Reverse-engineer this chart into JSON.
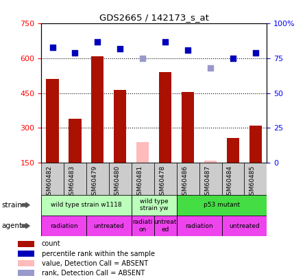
{
  "title": "GDS2665 / 142173_s_at",
  "samples": [
    "GSM60482",
    "GSM60483",
    "GSM60479",
    "GSM60480",
    "GSM60481",
    "GSM60478",
    "GSM60486",
    "GSM60487",
    "GSM60484",
    "GSM60485"
  ],
  "count_values": [
    510,
    340,
    610,
    465,
    null,
    540,
    455,
    null,
    255,
    310
  ],
  "count_absent": [
    null,
    null,
    null,
    null,
    240,
    null,
    null,
    158,
    null,
    null
  ],
  "rank_values": [
    83,
    79,
    87,
    82,
    null,
    87,
    81,
    null,
    75,
    79
  ],
  "rank_absent": [
    null,
    null,
    null,
    null,
    75,
    null,
    null,
    68,
    null,
    null
  ],
  "ylim_left": [
    150,
    750
  ],
  "ylim_right": [
    0,
    100
  ],
  "yticks_left": [
    150,
    300,
    450,
    600,
    750
  ],
  "yticks_right": [
    0,
    25,
    50,
    75,
    100
  ],
  "bar_color": "#aa1100",
  "bar_absent_color": "#ffbbbb",
  "dot_color": "#0000bb",
  "dot_absent_color": "#9999cc",
  "grid_color": "#000000",
  "strain_groups": [
    {
      "label": "wild type strain w1118",
      "start": 0,
      "end": 4,
      "color": "#bbffbb"
    },
    {
      "label": "wild type\nstrain yw",
      "start": 4,
      "end": 6,
      "color": "#bbffbb"
    },
    {
      "label": "p53 mutant",
      "start": 6,
      "end": 10,
      "color": "#44dd44"
    }
  ],
  "agent_groups": [
    {
      "label": "radiation",
      "start": 0,
      "end": 2,
      "color": "#ee44ee"
    },
    {
      "label": "untreated",
      "start": 2,
      "end": 4,
      "color": "#ee44ee"
    },
    {
      "label": "radiati\non",
      "start": 4,
      "end": 5,
      "color": "#ee44ee"
    },
    {
      "label": "untreat\ned",
      "start": 5,
      "end": 6,
      "color": "#ee44ee"
    },
    {
      "label": "radiation",
      "start": 6,
      "end": 8,
      "color": "#ee44ee"
    },
    {
      "label": "untreated",
      "start": 8,
      "end": 10,
      "color": "#ee44ee"
    }
  ],
  "legend_items": [
    {
      "label": "count",
      "color": "#aa1100"
    },
    {
      "label": "percentile rank within the sample",
      "color": "#0000bb"
    },
    {
      "label": "value, Detection Call = ABSENT",
      "color": "#ffbbbb"
    },
    {
      "label": "rank, Detection Call = ABSENT",
      "color": "#9999cc"
    }
  ],
  "strain_label": "strain",
  "agent_label": "agent",
  "bar_width": 0.55,
  "dot_size": 40
}
